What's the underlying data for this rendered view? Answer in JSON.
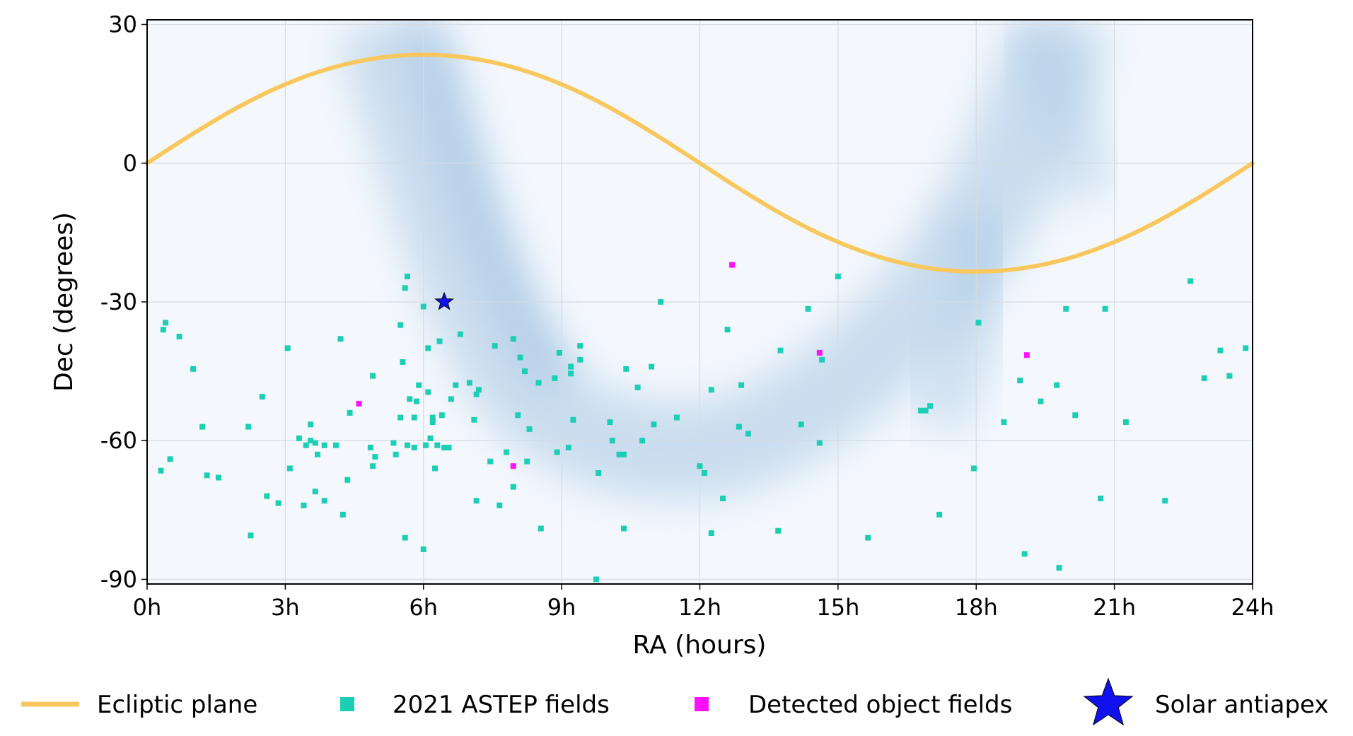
{
  "chart_data": {
    "type": "scatter",
    "xlabel": "RA (hours)",
    "ylabel": "Dec (degrees)",
    "xlim": [
      0,
      24
    ],
    "ylim": [
      -91,
      31
    ],
    "grid": true,
    "x_ticks": [
      {
        "value": 0,
        "label": "0h"
      },
      {
        "value": 3,
        "label": "3h"
      },
      {
        "value": 6,
        "label": "6h"
      },
      {
        "value": 9,
        "label": "9h"
      },
      {
        "value": 12,
        "label": "12h"
      },
      {
        "value": 15,
        "label": "15h"
      },
      {
        "value": 18,
        "label": "18h"
      },
      {
        "value": 21,
        "label": "21h"
      },
      {
        "value": 24,
        "label": "24h"
      }
    ],
    "y_ticks": [
      {
        "value": 30,
        "label": "30"
      },
      {
        "value": 0,
        "label": "0"
      },
      {
        "value": -30,
        "label": "-30"
      },
      {
        "value": -60,
        "label": "-60"
      },
      {
        "value": -90,
        "label": "-90"
      }
    ],
    "legend": {
      "placement": "bottom",
      "entries": [
        {
          "label": "Ecliptic plane",
          "marker": "line",
          "color": "#f8c85e"
        },
        {
          "label": "2021 ASTEP fields",
          "marker": "square",
          "color": "#1ccfb4"
        },
        {
          "label": "Detected object fields",
          "marker": "square",
          "color": "#ff11ff"
        },
        {
          "label": "Solar antiapex",
          "marker": "star",
          "color": "#1111ee"
        }
      ]
    },
    "series": [
      {
        "name": "Ecliptic plane",
        "type": "line",
        "color": "#f8c85e",
        "obliquity_deg": 23.44,
        "note": "Dec = atan(sin(RA) * tan(obliquity))"
      },
      {
        "name": "2021 ASTEP fields",
        "type": "scatter",
        "color": "#1ccfb4",
        "points": [
          [
            0.3,
            -66.5
          ],
          [
            0.35,
            -36
          ],
          [
            0.4,
            -34.5
          ],
          [
            0.5,
            -64
          ],
          [
            0.7,
            -37.5
          ],
          [
            1.0,
            -44.5
          ],
          [
            1.2,
            -57
          ],
          [
            1.3,
            -67.5
          ],
          [
            1.55,
            -68
          ],
          [
            2.2,
            -57
          ],
          [
            2.25,
            -80.5
          ],
          [
            2.5,
            -50.5
          ],
          [
            2.6,
            -72
          ],
          [
            2.85,
            -73.5
          ],
          [
            3.05,
            -40
          ],
          [
            3.1,
            -66
          ],
          [
            3.3,
            -59.5
          ],
          [
            3.4,
            -74
          ],
          [
            3.45,
            -61
          ],
          [
            3.55,
            -60
          ],
          [
            3.55,
            -56.5
          ],
          [
            3.65,
            -71
          ],
          [
            3.65,
            -60.5
          ],
          [
            3.7,
            -63
          ],
          [
            3.85,
            -61
          ],
          [
            3.85,
            -73
          ],
          [
            4.1,
            -61
          ],
          [
            4.2,
            -38
          ],
          [
            4.25,
            -76
          ],
          [
            4.35,
            -68.5
          ],
          [
            4.4,
            -54
          ],
          [
            4.85,
            -61.5
          ],
          [
            4.9,
            -65.5
          ],
          [
            4.9,
            -46
          ],
          [
            4.95,
            -63.5
          ],
          [
            5.35,
            -60.5
          ],
          [
            5.4,
            -63
          ],
          [
            5.5,
            -35
          ],
          [
            5.5,
            -55
          ],
          [
            5.55,
            -43
          ],
          [
            5.6,
            -27
          ],
          [
            5.6,
            -81
          ],
          [
            5.65,
            -24.5
          ],
          [
            5.65,
            -61
          ],
          [
            5.7,
            -51
          ],
          [
            5.8,
            -61.5
          ],
          [
            5.8,
            -55
          ],
          [
            5.85,
            -51.5
          ],
          [
            5.9,
            -48
          ],
          [
            6.0,
            -31
          ],
          [
            6.0,
            -83.5
          ],
          [
            6.05,
            -61
          ],
          [
            6.1,
            -49.5
          ],
          [
            6.1,
            -40
          ],
          [
            6.15,
            -59.5
          ],
          [
            6.2,
            -56
          ],
          [
            6.2,
            -55
          ],
          [
            6.25,
            -66
          ],
          [
            6.3,
            -61
          ],
          [
            6.35,
            -38.5
          ],
          [
            6.4,
            -54.5
          ],
          [
            6.45,
            -61.5
          ],
          [
            6.55,
            -61.5
          ],
          [
            6.6,
            -51
          ],
          [
            6.7,
            -48
          ],
          [
            6.8,
            -37
          ],
          [
            7.0,
            -47.5
          ],
          [
            7.1,
            -55.5
          ],
          [
            7.15,
            -73
          ],
          [
            7.15,
            -50
          ],
          [
            7.2,
            -49
          ],
          [
            7.45,
            -64.5
          ],
          [
            7.55,
            -39.5
          ],
          [
            7.65,
            -74
          ],
          [
            7.8,
            -62.5
          ],
          [
            7.95,
            -38
          ],
          [
            7.95,
            -70
          ],
          [
            8.05,
            -54.5
          ],
          [
            8.1,
            -42
          ],
          [
            8.2,
            -45
          ],
          [
            8.25,
            -64.5
          ],
          [
            8.3,
            -57.5
          ],
          [
            8.5,
            -47.5
          ],
          [
            8.55,
            -79
          ],
          [
            8.85,
            -46.5
          ],
          [
            8.9,
            -62.5
          ],
          [
            8.95,
            -41
          ],
          [
            9.15,
            -61.5
          ],
          [
            9.2,
            -44
          ],
          [
            9.2,
            -45.5
          ],
          [
            9.25,
            -55.5
          ],
          [
            9.4,
            -39.5
          ],
          [
            9.4,
            -42.5
          ],
          [
            9.75,
            -90
          ],
          [
            9.8,
            -67
          ],
          [
            10.05,
            -56
          ],
          [
            10.1,
            -60
          ],
          [
            10.25,
            -63
          ],
          [
            10.35,
            -63
          ],
          [
            10.35,
            -79
          ],
          [
            10.4,
            -44.5
          ],
          [
            10.65,
            -48.5
          ],
          [
            10.75,
            -60
          ],
          [
            10.95,
            -44
          ],
          [
            11.0,
            -56.5
          ],
          [
            11.15,
            -30
          ],
          [
            11.5,
            -55
          ],
          [
            12.0,
            -65.5
          ],
          [
            12.1,
            -67
          ],
          [
            12.25,
            -80
          ],
          [
            12.25,
            -49
          ],
          [
            12.5,
            -72.5
          ],
          [
            12.6,
            -36
          ],
          [
            12.85,
            -57
          ],
          [
            12.9,
            -48
          ],
          [
            13.05,
            -58.5
          ],
          [
            13.7,
            -79.5
          ],
          [
            13.75,
            -40.5
          ],
          [
            14.2,
            -56.5
          ],
          [
            14.35,
            -31.5
          ],
          [
            14.6,
            -60.5
          ],
          [
            14.65,
            -42.5
          ],
          [
            15.0,
            -24.5
          ],
          [
            15.65,
            -81
          ],
          [
            16.8,
            -53.5
          ],
          [
            16.9,
            -53.5
          ],
          [
            17.0,
            -52.5
          ],
          [
            17.2,
            -76
          ],
          [
            17.95,
            -66
          ],
          [
            18.05,
            -34.5
          ],
          [
            18.6,
            -56
          ],
          [
            18.95,
            -47
          ],
          [
            19.05,
            -84.5
          ],
          [
            19.4,
            -51.5
          ],
          [
            19.75,
            -48
          ],
          [
            19.8,
            -87.5
          ],
          [
            19.95,
            -31.5
          ],
          [
            20.15,
            -54.5
          ],
          [
            20.7,
            -72.5
          ],
          [
            20.8,
            -31.5
          ],
          [
            21.25,
            -56
          ],
          [
            22.1,
            -73
          ],
          [
            22.65,
            -25.5
          ],
          [
            22.95,
            -46.5
          ],
          [
            23.3,
            -40.5
          ],
          [
            23.5,
            -46
          ],
          [
            23.85,
            -40
          ]
        ]
      },
      {
        "name": "Detected object fields",
        "type": "scatter",
        "color": "#ff11ff",
        "points": [
          [
            4.6,
            -52
          ],
          [
            7.95,
            -65.5
          ],
          [
            12.7,
            -22
          ],
          [
            14.6,
            -41
          ],
          [
            19.1,
            -41.5
          ]
        ]
      },
      {
        "name": "Solar antiapex",
        "type": "scatter",
        "marker": "star",
        "color": "#1111ee",
        "points": [
          [
            6.45,
            -30
          ]
        ]
      }
    ]
  }
}
